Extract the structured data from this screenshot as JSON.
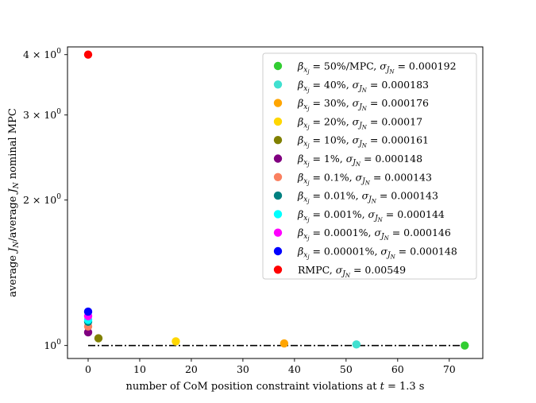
{
  "chart_data": {
    "type": "scatter",
    "xlabel": "number of CoM position constraint violations at t = 1.3 s",
    "ylabel": "average J_N/average J_N nominal MPC",
    "xlim": [
      -4,
      76.5
    ],
    "ylim": [
      0.94,
      4.15
    ],
    "yscale": "log",
    "grid": false,
    "legend_position": "upper-right",
    "x_ticks": [
      0,
      10,
      20,
      30,
      40,
      50,
      60,
      70
    ],
    "y_ticks": [
      {
        "value": 1,
        "label": "10^0",
        "prefix": ""
      },
      {
        "value": 2,
        "label": "2 × 10^0",
        "prefix": "2 ×"
      },
      {
        "value": 3,
        "label": "3 × 10^0",
        "prefix": "3 ×"
      },
      {
        "value": 4,
        "label": "4 × 10^0",
        "prefix": "4 ×"
      }
    ],
    "reference_line": {
      "y": 1.0,
      "x_range": [
        0,
        73
      ],
      "style": "dash-dot",
      "color": "#000000"
    },
    "series": [
      {
        "name": "β_xj = 50%/MPC,  σ_JN = 0.000192",
        "beta": "50%/MPC",
        "sigma": "0.000192",
        "color": "#32cd32",
        "points": [
          [
            73,
            1.0
          ]
        ]
      },
      {
        "name": "β_xj = 40%, σ_JN = 0.000183",
        "beta": "40%",
        "sigma": "0.000183",
        "color": "#40e0d0",
        "points": [
          [
            52,
            1.005
          ]
        ]
      },
      {
        "name": "β_xj = 30%, σ_JN = 0.000176",
        "beta": "30%",
        "sigma": "0.000176",
        "color": "#ffa500",
        "points": [
          [
            38,
            1.01
          ]
        ]
      },
      {
        "name": "β_xj = 20%, σ_JN = 0.00017",
        "beta": "20%",
        "sigma": "0.00017",
        "color": "#ffd700",
        "points": [
          [
            17,
            1.02
          ]
        ]
      },
      {
        "name": "β_xj = 10%, σ_JN = 0.000161",
        "beta": "10%",
        "sigma": "0.000161",
        "color": "#808000",
        "points": [
          [
            2,
            1.035
          ]
        ]
      },
      {
        "name": "β_xj = 1%, σ_JN = 0.000148",
        "beta": "1%",
        "sigma": "0.000148",
        "color": "#800080",
        "points": [
          [
            0,
            1.065
          ]
        ]
      },
      {
        "name": "β_xj = 0.1%, σ_JN = 0.000143",
        "beta": "0.1%",
        "sigma": "0.000143",
        "color": "#fa8060",
        "points": [
          [
            0,
            1.095
          ]
        ]
      },
      {
        "name": "β_xj = 0.01%, σ_JN = 0.000143",
        "beta": "0.01%",
        "sigma": "0.000143",
        "color": "#008080",
        "points": [
          [
            0,
            1.12
          ]
        ]
      },
      {
        "name": "β_xj = 0.001%, σ_JN = 0.000144",
        "beta": "0.001%",
        "sigma": "0.000144",
        "color": "#00ffff",
        "points": [
          [
            0,
            1.13
          ]
        ]
      },
      {
        "name": "β_xj = 0.0001%, σ_JN = 0.000146",
        "beta": "0.0001%",
        "sigma": "0.000146",
        "color": "#ff00ff",
        "points": [
          [
            0,
            1.15
          ]
        ]
      },
      {
        "name": "β_xj = 0.00001%, σ_JN = 0.000148",
        "beta": "0.00001%",
        "sigma": "0.000148",
        "color": "#0000ff",
        "points": [
          [
            0,
            1.175
          ]
        ]
      },
      {
        "name": "RMPC,  σ_JN = 0.00549",
        "beta": "",
        "rmpc_label": "RMPC,",
        "sigma": "0.00549",
        "color": "#ff0000",
        "points": [
          [
            0,
            4.0
          ]
        ]
      }
    ]
  }
}
